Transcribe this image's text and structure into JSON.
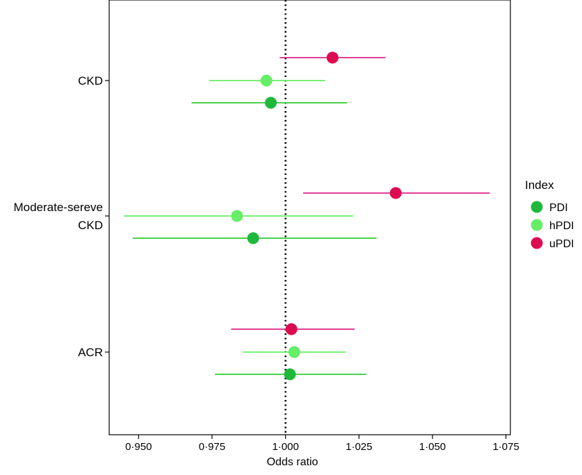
{
  "chart_data": {
    "type": "scatter",
    "subtype": "forest-plot",
    "xlabel": "Odds ratio",
    "xlim": [
      0.94,
      1.0765
    ],
    "x_ticks": [
      "0·950",
      "0·975",
      "1·000",
      "1·025",
      "1·050",
      "1·075"
    ],
    "x_tick_values": [
      0.95,
      0.975,
      1.0,
      1.025,
      1.05,
      1.075
    ],
    "reference_line": {
      "x": 1.0,
      "style": "dotted"
    },
    "grid": false,
    "categories": [
      {
        "id": "ckd",
        "label_lines": [
          "CKD"
        ]
      },
      {
        "id": "moderate",
        "label_lines": [
          "Moderate-sereve",
          "CKD"
        ]
      },
      {
        "id": "acr",
        "label_lines": [
          "ACR"
        ]
      }
    ],
    "series": [
      {
        "name": "PDI",
        "color": "#1fb83a",
        "line_color": "#33cc33",
        "points": [
          {
            "category": "ckd",
            "estimate": 0.995,
            "lower": 0.968,
            "upper": 1.021
          },
          {
            "category": "moderate",
            "estimate": 0.989,
            "lower": 0.948,
            "upper": 1.031
          },
          {
            "category": "acr",
            "estimate": 1.0015,
            "lower": 0.976,
            "upper": 1.0275
          }
        ]
      },
      {
        "name": "hPDI",
        "color": "#66ee66",
        "line_color": "#66ee66",
        "points": [
          {
            "category": "ckd",
            "estimate": 0.9935,
            "lower": 0.974,
            "upper": 1.0135
          },
          {
            "category": "moderate",
            "estimate": 0.9835,
            "lower": 0.945,
            "upper": 1.023
          },
          {
            "category": "acr",
            "estimate": 1.003,
            "lower": 0.9855,
            "upper": 1.0205
          }
        ]
      },
      {
        "name": "uPDI",
        "color": "#dd0b4f",
        "line_color": "#dd2288",
        "points": [
          {
            "category": "ckd",
            "estimate": 1.016,
            "lower": 0.998,
            "upper": 1.034
          },
          {
            "category": "moderate",
            "estimate": 1.0375,
            "lower": 1.006,
            "upper": 1.0695
          },
          {
            "category": "acr",
            "estimate": 1.002,
            "lower": 0.9815,
            "upper": 1.0235
          }
        ]
      }
    ],
    "legend": {
      "title": "Index",
      "placement": "right",
      "entries": [
        "PDI",
        "hPDI",
        "uPDI"
      ]
    }
  }
}
